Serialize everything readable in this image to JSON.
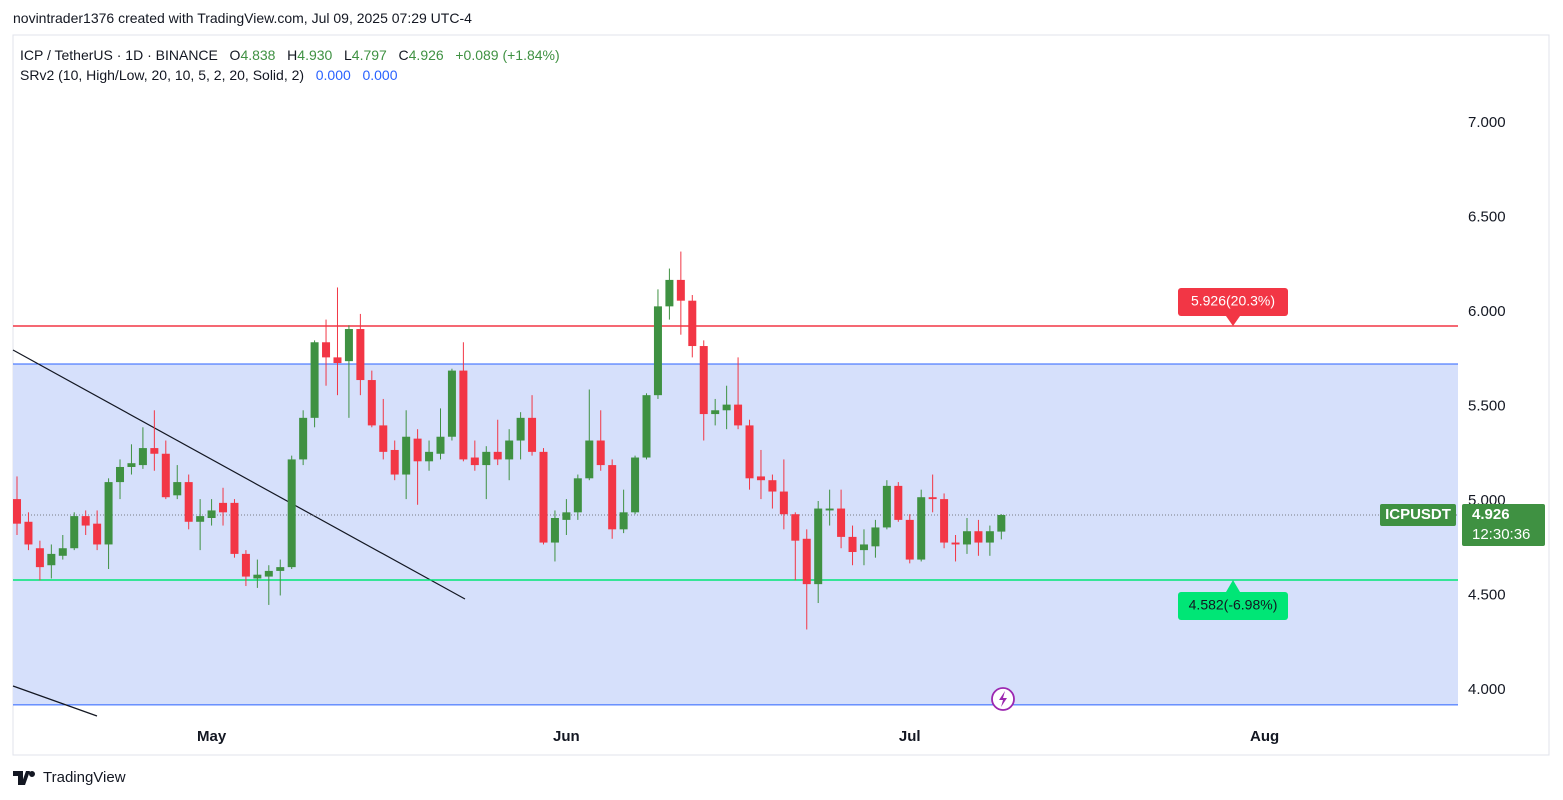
{
  "header": "novintrader1376 created with TradingView.com, Jul 09, 2025 07:29 UTC-4",
  "legend": {
    "symbol": "ICP / TetherUS · 1D · BINANCE",
    "fields": [
      {
        "label": "O",
        "value": "4.838"
      },
      {
        "label": "H",
        "value": "4.930"
      },
      {
        "label": "L",
        "value": "4.797"
      },
      {
        "label": "C",
        "value": "4.926"
      }
    ],
    "change": "+0.089 (+1.84%)",
    "indicator": "SRv2 (10, High/Low, 20, 10, 5, 2, 20, Solid, 2)",
    "indicator_values": [
      "0.000",
      "0.000"
    ]
  },
  "chart_data": {
    "type": "candlestick",
    "up_color": "#3f9142",
    "down_color": "#f23645",
    "open": [
      5.01,
      4.89,
      4.75,
      4.66,
      4.71,
      4.75,
      4.92,
      4.88,
      4.77,
      5.1,
      5.18,
      5.19,
      5.28,
      5.25,
      5.03,
      5.1,
      4.89,
      4.91,
      4.99,
      4.99,
      4.72,
      4.59,
      4.6,
      4.63,
      4.65,
      5.22,
      5.44,
      5.84,
      5.76,
      5.74,
      5.91,
      5.64,
      5.4,
      5.27,
      5.14,
      5.33,
      5.21,
      5.25,
      5.34,
      5.69,
      5.23,
      5.19,
      5.26,
      5.22,
      5.32,
      5.44,
      5.26,
      4.78,
      4.9,
      4.94,
      5.12,
      5.32,
      5.19,
      4.85,
      4.94,
      5.23,
      5.56,
      6.03,
      6.17,
      6.06,
      5.82,
      5.46,
      5.48,
      5.51,
      5.4,
      5.13,
      5.11,
      5.05,
      4.93,
      4.8,
      4.56,
      4.95,
      4.96,
      4.81,
      4.74,
      4.76,
      4.86,
      5.08,
      4.9,
      4.69,
      5.02,
      5.01,
      4.78,
      4.77,
      4.84,
      4.78,
      4.838
    ],
    "high": [
      5.13,
      4.94,
      4.79,
      4.77,
      4.82,
      4.94,
      4.95,
      4.95,
      5.12,
      5.22,
      5.3,
      5.39,
      5.48,
      5.32,
      5.19,
      5.14,
      5.01,
      5.01,
      5.07,
      5.01,
      4.74,
      4.69,
      4.66,
      4.69,
      5.24,
      5.48,
      5.85,
      5.96,
      6.13,
      5.93,
      5.99,
      5.69,
      5.54,
      5.32,
      5.48,
      5.38,
      5.32,
      5.49,
      5.7,
      5.84,
      5.32,
      5.29,
      5.43,
      5.38,
      5.47,
      5.56,
      5.28,
      4.95,
      5.01,
      5.14,
      5.59,
      5.48,
      5.22,
      5.06,
      5.24,
      5.57,
      6.12,
      6.23,
      6.32,
      6.09,
      5.85,
      5.54,
      5.61,
      5.76,
      5.43,
      5.27,
      5.14,
      5.22,
      4.94,
      4.85,
      5.0,
      5.06,
      5.06,
      4.87,
      4.85,
      4.9,
      5.11,
      5.1,
      4.93,
      5.06,
      5.14,
      5.04,
      4.82,
      4.91,
      4.9,
      4.87,
      4.93
    ],
    "low": [
      4.82,
      4.74,
      4.58,
      4.59,
      4.69,
      4.74,
      4.82,
      4.74,
      4.64,
      5.01,
      5.14,
      5.17,
      5.16,
      5.01,
      5.01,
      4.85,
      4.74,
      4.87,
      4.87,
      4.7,
      4.55,
      4.54,
      4.45,
      4.5,
      4.64,
      5.19,
      5.39,
      5.61,
      5.56,
      5.44,
      5.56,
      5.39,
      5.22,
      5.11,
      5.01,
      4.98,
      5.16,
      5.22,
      5.32,
      5.21,
      5.16,
      5.01,
      5.19,
      5.11,
      5.22,
      5.24,
      4.77,
      4.68,
      4.82,
      4.9,
      5.11,
      5.16,
      4.8,
      4.83,
      4.93,
      5.22,
      5.54,
      5.96,
      5.88,
      5.76,
      5.32,
      5.4,
      5.38,
      5.38,
      5.06,
      5.01,
      4.96,
      4.85,
      4.58,
      4.32,
      4.46,
      4.87,
      4.75,
      4.66,
      4.66,
      4.7,
      4.85,
      4.89,
      4.67,
      4.68,
      4.94,
      4.75,
      4.68,
      4.72,
      4.71,
      4.71,
      4.797
    ],
    "close": [
      4.88,
      4.77,
      4.65,
      4.72,
      4.75,
      4.92,
      4.87,
      4.77,
      5.1,
      5.18,
      5.2,
      5.28,
      5.25,
      5.02,
      5.1,
      4.89,
      4.92,
      4.95,
      4.94,
      4.72,
      4.6,
      4.61,
      4.63,
      4.65,
      5.22,
      5.44,
      5.84,
      5.76,
      5.73,
      5.91,
      5.64,
      5.4,
      5.26,
      5.14,
      5.34,
      5.21,
      5.26,
      5.34,
      5.69,
      5.22,
      5.19,
      5.26,
      5.22,
      5.32,
      5.44,
      5.26,
      4.78,
      4.91,
      4.94,
      5.12,
      5.32,
      5.19,
      4.85,
      4.94,
      5.23,
      5.56,
      6.03,
      6.17,
      6.06,
      5.82,
      5.46,
      5.48,
      5.51,
      5.4,
      5.12,
      5.11,
      5.05,
      4.93,
      4.79,
      4.56,
      4.96,
      4.96,
      4.81,
      4.73,
      4.77,
      4.86,
      5.08,
      4.9,
      4.69,
      5.02,
      5.01,
      4.78,
      4.77,
      4.84,
      4.78,
      4.84,
      4.926
    ],
    "xlim": [
      -0.35,
      125.9
    ],
    "xticks": [
      {
        "value": 17,
        "label": "May"
      },
      {
        "value": 48,
        "label": "Jun"
      },
      {
        "value": 78,
        "label": "Jul"
      },
      {
        "value": 109,
        "label": "Aug"
      }
    ],
    "ylim": [
      3.841,
      7.466
    ],
    "yticks": [
      {
        "value": 4,
        "label": "4.000"
      },
      {
        "value": 4.5,
        "label": "4.500"
      },
      {
        "value": 5,
        "label": "5.000"
      },
      {
        "value": 5.5,
        "label": "5.500"
      },
      {
        "value": 6,
        "label": "6.000"
      },
      {
        "value": 6.5,
        "label": "6.500"
      },
      {
        "value": 7,
        "label": "7.000"
      }
    ],
    "grid": false,
    "zone": [
      3.921,
      5.725
    ],
    "levels": [
      {
        "value": 5.926,
        "label": "5.926(20.3%)",
        "color": "#f23645"
      },
      {
        "value": 4.582,
        "label": "4.582(-6.98%)",
        "color": "#00e676"
      }
    ],
    "last_price": {
      "symbol": "ICPUSDT",
      "value": 4.926,
      "countdown": "12:30:36"
    }
  },
  "footer": "TradingView"
}
